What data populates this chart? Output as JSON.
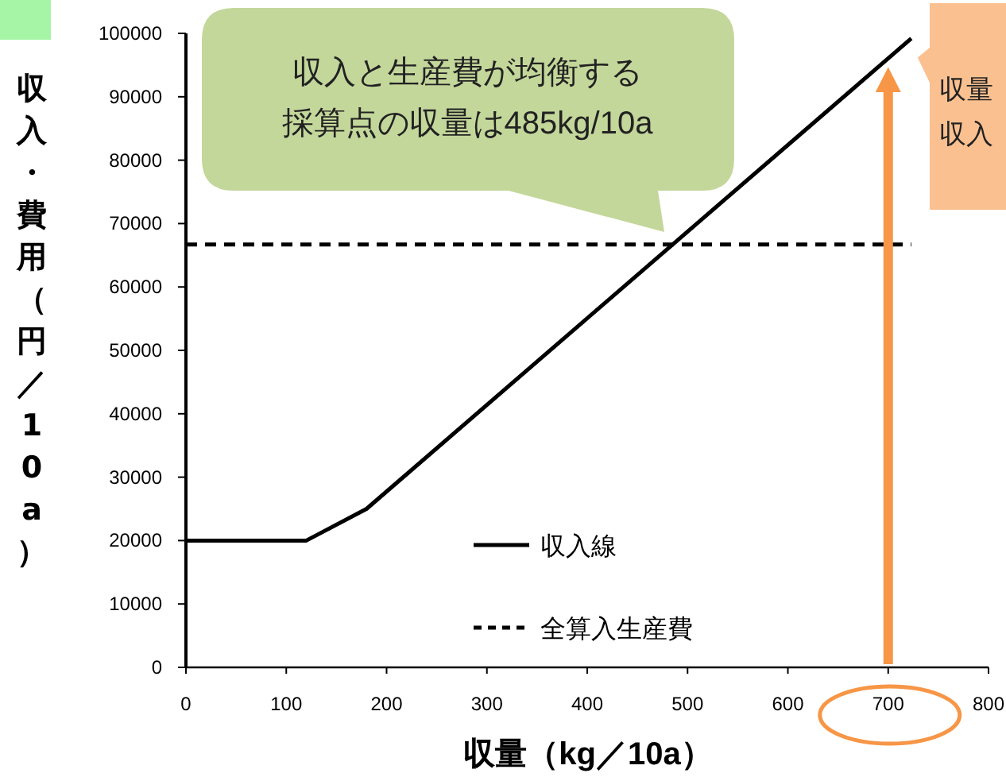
{
  "chart_data": {
    "type": "line",
    "xlabel": "収量（kg／10a）",
    "ylabel": "収入・費用（円／10a）",
    "xlim": [
      0,
      800
    ],
    "ylim": [
      0,
      100000
    ],
    "xticks": [
      0,
      100,
      200,
      300,
      400,
      500,
      600,
      700,
      800
    ],
    "yticks": [
      0,
      10000,
      20000,
      30000,
      40000,
      50000,
      60000,
      70000,
      80000,
      90000,
      100000
    ],
    "legend": "bottom",
    "marker": "none",
    "series": [
      {
        "name": "収入線",
        "color": "#000000",
        "line_style": "solid",
        "x": [
          0,
          120,
          180,
          723
        ],
        "values": [
          20000,
          20000,
          25000,
          99200
        ]
      },
      {
        "name": "全算入生産費",
        "color": "#000000",
        "line_style": "dashed",
        "x": [
          0,
          723
        ],
        "values": [
          66700,
          66700
        ]
      }
    ],
    "annotations": [
      "収入と生産費が均衡する採算点の収量は485kg/10a",
      {
        "text": "収量",
        "x": 723,
        "y": 99200
      },
      "収入"
    ]
  }
}
